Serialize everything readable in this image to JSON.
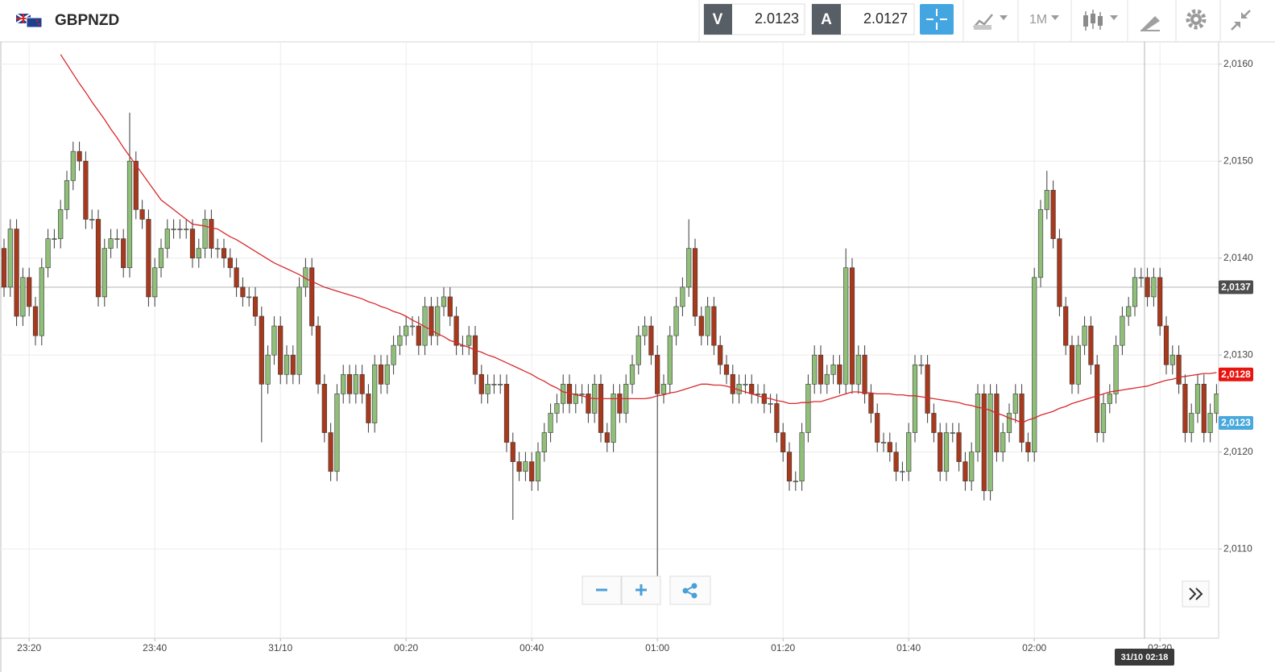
{
  "header": {
    "symbol": "GBPNZD",
    "bid": {
      "label": "V",
      "price": 2.0123
    },
    "ask": {
      "label": "A",
      "price": 2.0127
    },
    "timeframe": "1M"
  },
  "chart_data": {
    "type": "candlestick",
    "up_color": "#8fbf79",
    "down_color": "#a8391c",
    "ylim": [
      2.01008,
      2.01623
    ],
    "yticks": [
      {
        "value": 2.011,
        "label": "2,0110"
      },
      {
        "value": 2.012,
        "label": "2,0120"
      },
      {
        "value": 2.013,
        "label": "2,0130"
      },
      {
        "value": 2.014,
        "label": "2,0140"
      },
      {
        "value": 2.015,
        "label": "2,0150"
      },
      {
        "value": 2.016,
        "label": "2,0160"
      }
    ],
    "grid": true,
    "categories": [
      null,
      null,
      null,
      null,
      "23:20",
      null,
      null,
      null,
      null,
      null,
      null,
      null,
      null,
      null,
      null,
      null,
      null,
      null,
      null,
      null,
      null,
      null,
      null,
      null,
      "23:40",
      null,
      null,
      null,
      null,
      null,
      null,
      null,
      null,
      null,
      null,
      null,
      null,
      null,
      null,
      null,
      null,
      null,
      null,
      null,
      "31/10",
      null,
      null,
      null,
      null,
      null,
      null,
      null,
      null,
      null,
      null,
      null,
      null,
      null,
      null,
      null,
      null,
      null,
      null,
      null,
      "00:20",
      null,
      null,
      null,
      null,
      null,
      null,
      null,
      null,
      null,
      null,
      null,
      null,
      null,
      null,
      null,
      null,
      null,
      null,
      null,
      "00:40",
      null,
      null,
      null,
      null,
      null,
      null,
      null,
      null,
      null,
      null,
      null,
      null,
      null,
      null,
      null,
      null,
      null,
      null,
      null,
      "01:00",
      null,
      null,
      null,
      null,
      null,
      null,
      null,
      null,
      null,
      null,
      null,
      null,
      null,
      null,
      null,
      null,
      null,
      null,
      null,
      "01:20",
      null,
      null,
      null,
      null,
      null,
      null,
      null,
      null,
      null,
      null,
      null,
      null,
      null,
      null,
      null,
      null,
      null,
      null,
      null,
      "01:40",
      null,
      null,
      null,
      null,
      null,
      null,
      null,
      null,
      null,
      null,
      null,
      null,
      null,
      null,
      null,
      null,
      null,
      null,
      null,
      "02:00",
      null,
      null,
      null,
      null,
      null,
      null,
      null,
      null,
      null,
      null,
      null,
      null,
      null,
      null,
      null,
      null,
      null,
      null,
      null,
      "02:20",
      null,
      null,
      null,
      null,
      null,
      null,
      null,
      null,
      null
    ],
    "open": [
      2.0141,
      2.0137,
      2.0143,
      2.0134,
      2.0138,
      2.0135,
      2.0132,
      2.0139,
      2.0142,
      2.0142,
      2.0145,
      2.0148,
      2.0151,
      2.015,
      2.0144,
      2.0144,
      2.0136,
      2.0141,
      2.0142,
      2.0142,
      2.0139,
      2.015,
      2.0145,
      2.0144,
      2.0136,
      2.0139,
      2.0141,
      2.0143,
      2.0143,
      2.0143,
      2.0143,
      2.014,
      2.0141,
      2.0144,
      2.0141,
      2.0141,
      2.014,
      2.0139,
      2.0137,
      2.0136,
      2.0136,
      2.0134,
      2.0127,
      2.013,
      2.0133,
      2.0128,
      2.013,
      2.0128,
      2.0137,
      2.0139,
      2.0133,
      2.0127,
      2.0122,
      2.0118,
      2.0126,
      2.0128,
      2.0126,
      2.0128,
      2.0126,
      2.0123,
      2.0129,
      2.0127,
      2.0129,
      2.0131,
      2.0132,
      2.0133,
      2.0133,
      2.0131,
      2.0135,
      2.0132,
      2.0135,
      2.0136,
      2.0134,
      2.0131,
      2.0131,
      2.0132,
      2.0128,
      2.0126,
      2.0127,
      2.0127,
      2.0127,
      2.0121,
      2.0119,
      2.0118,
      2.0119,
      2.0117,
      2.012,
      2.0122,
      2.0124,
      2.0125,
      2.0127,
      2.0125,
      2.0126,
      2.0126,
      2.0124,
      2.0127,
      2.0122,
      2.0121,
      2.0126,
      2.0124,
      2.0127,
      2.0129,
      2.0132,
      2.0133,
      2.013,
      2.0126,
      2.0127,
      2.0132,
      2.0135,
      2.0137,
      2.0141,
      2.0134,
      2.0132,
      2.0135,
      2.0131,
      2.0129,
      2.0128,
      2.0126,
      2.0127,
      2.0127,
      2.0126,
      2.0126,
      2.0125,
      2.0125,
      2.0122,
      2.012,
      2.0117,
      2.0117,
      2.0122,
      2.0127,
      2.013,
      2.0127,
      2.0128,
      2.0129,
      2.0127,
      2.0139,
      2.0127,
      2.013,
      2.0126,
      2.0124,
      2.0121,
      2.0121,
      2.012,
      2.0118,
      2.0118,
      2.0122,
      2.0129,
      2.0129,
      2.0124,
      2.0122,
      2.0118,
      2.0122,
      2.0122,
      2.0119,
      2.0117,
      2.012,
      2.0126,
      2.0116,
      2.0126,
      2.012,
      2.0122,
      2.0124,
      2.0126,
      2.0121,
      2.012,
      2.0138,
      2.0145,
      2.0147,
      2.0142,
      2.0135,
      2.0131,
      2.0127,
      2.0131,
      2.0133,
      2.0129,
      2.0122,
      2.0125,
      2.0126,
      2.0131,
      2.0134,
      2.0135,
      2.0138,
      2.0138,
      2.0136,
      2.0138,
      2.0133,
      2.0129,
      2.013,
      2.0127,
      2.0122,
      2.0124,
      2.0127,
      2.0122,
      2.0124
    ],
    "high": [
      2.0142,
      2.0144,
      2.0144,
      2.0139,
      2.0139,
      2.0136,
      2.014,
      2.0143,
      2.0143,
      2.0146,
      2.0149,
      2.0152,
      2.0152,
      2.0151,
      2.0145,
      2.0145,
      2.0142,
      2.0143,
      2.0143,
      2.0143,
      2.0155,
      2.0151,
      2.0146,
      2.0145,
      2.014,
      2.0142,
      2.0144,
      2.0144,
      2.0144,
      2.0144,
      2.0144,
      2.0142,
      2.0145,
      2.0145,
      2.0142,
      2.0142,
      2.0141,
      2.014,
      2.0138,
      2.0137,
      2.0137,
      2.0135,
      2.0131,
      2.0134,
      2.0134,
      2.0131,
      2.0131,
      2.0138,
      2.014,
      2.014,
      2.0134,
      2.0128,
      2.0123,
      2.0127,
      2.0129,
      2.0129,
      2.0129,
      2.0129,
      2.0127,
      2.013,
      2.013,
      2.013,
      2.0132,
      2.0133,
      2.0134,
      2.0134,
      2.0134,
      2.0136,
      2.0136,
      2.0136,
      2.0137,
      2.0137,
      2.0135,
      2.0132,
      2.0133,
      2.0133,
      2.0129,
      2.0128,
      2.0128,
      2.0128,
      2.0128,
      2.0122,
      2.012,
      2.012,
      2.012,
      2.0121,
      2.0123,
      2.0125,
      2.0126,
      2.0128,
      2.0128,
      2.0127,
      2.0127,
      2.0127,
      2.0128,
      2.0128,
      2.0123,
      2.0127,
      2.0127,
      2.0128,
      2.013,
      2.0133,
      2.0134,
      2.0134,
      2.0131,
      2.0128,
      2.0133,
      2.0136,
      2.0138,
      2.0144,
      2.0142,
      2.0135,
      2.0136,
      2.0136,
      2.0132,
      2.013,
      2.0129,
      2.0128,
      2.0128,
      2.0128,
      2.0127,
      2.0127,
      2.0126,
      2.0126,
      2.0123,
      2.0121,
      2.0118,
      2.0123,
      2.0128,
      2.0131,
      2.0131,
      2.0129,
      2.013,
      2.013,
      2.0141,
      2.014,
      2.0131,
      2.0131,
      2.0127,
      2.0125,
      2.0122,
      2.0122,
      2.0121,
      2.0119,
      2.0123,
      2.013,
      2.013,
      2.013,
      2.0125,
      2.0123,
      2.0123,
      2.0123,
      2.0123,
      2.012,
      2.0121,
      2.0127,
      2.0127,
      2.0127,
      2.0127,
      2.0123,
      2.0125,
      2.0127,
      2.0127,
      2.0122,
      2.0139,
      2.0146,
      2.0149,
      2.0148,
      2.0143,
      2.0136,
      2.0132,
      2.0132,
      2.0134,
      2.0134,
      2.013,
      2.0126,
      2.0127,
      2.0132,
      2.0135,
      2.0136,
      2.0139,
      2.0139,
      2.0139,
      2.0139,
      2.0139,
      2.0134,
      2.0131,
      2.0131,
      2.0128,
      2.0125,
      2.0128,
      2.0128,
      2.0125,
      2.0127
    ],
    "low": [
      2.0136,
      2.0136,
      2.0133,
      2.0133,
      2.0134,
      2.0131,
      2.0131,
      2.0138,
      2.0141,
      2.0141,
      2.0144,
      2.0147,
      2.0149,
      2.0143,
      2.0143,
      2.0135,
      2.0135,
      2.014,
      2.0141,
      2.0138,
      2.0138,
      2.0144,
      2.0143,
      2.0135,
      2.0135,
      2.0138,
      2.014,
      2.0142,
      2.0142,
      2.0142,
      2.0139,
      2.0139,
      2.014,
      2.014,
      2.014,
      2.0139,
      2.0138,
      2.0136,
      2.0135,
      2.0135,
      2.0133,
      2.0121,
      2.0126,
      2.0129,
      2.0127,
      2.0127,
      2.0127,
      2.0127,
      2.0136,
      2.0132,
      2.0126,
      2.0121,
      2.0117,
      2.0117,
      2.0125,
      2.0125,
      2.0125,
      2.0125,
      2.0122,
      2.0122,
      2.0126,
      2.0126,
      2.0128,
      2.013,
      2.0131,
      2.0132,
      2.013,
      2.013,
      2.0131,
      2.0131,
      2.0134,
      2.0133,
      2.013,
      2.013,
      2.013,
      2.0127,
      2.0125,
      2.0125,
      2.0126,
      2.0126,
      2.012,
      2.0113,
      2.0117,
      2.0117,
      2.0116,
      2.0116,
      2.0119,
      2.0121,
      2.0123,
      2.0124,
      2.0124,
      2.0124,
      2.0125,
      2.0123,
      2.0123,
      2.0121,
      2.012,
      2.012,
      2.0123,
      2.0123,
      2.0126,
      2.0128,
      2.0131,
      2.0129,
      2.0107,
      2.0125,
      2.0126,
      2.0131,
      2.0134,
      2.0136,
      2.0133,
      2.0131,
      2.0131,
      2.013,
      2.0128,
      2.0127,
      2.0125,
      2.0125,
      2.0126,
      2.0125,
      2.0125,
      2.0124,
      2.0124,
      2.0121,
      2.0119,
      2.0116,
      2.0116,
      2.0116,
      2.0121,
      2.0126,
      2.0126,
      2.0126,
      2.0127,
      2.0126,
      2.0126,
      2.0126,
      2.0126,
      2.0125,
      2.0123,
      2.012,
      2.012,
      2.0119,
      2.0117,
      2.0117,
      2.0117,
      2.0121,
      2.0128,
      2.0123,
      2.0121,
      2.0117,
      2.0117,
      2.0121,
      2.0118,
      2.0116,
      2.0116,
      2.0119,
      2.0115,
      2.0115,
      2.0119,
      2.0119,
      2.0121,
      2.0123,
      2.012,
      2.0119,
      2.0119,
      2.0137,
      2.0144,
      2.0141,
      2.0134,
      2.013,
      2.0126,
      2.0126,
      2.013,
      2.0128,
      2.0121,
      2.0121,
      2.0124,
      2.0125,
      2.013,
      2.0133,
      2.0134,
      2.0137,
      2.0135,
      2.0135,
      2.0132,
      2.0128,
      2.0128,
      2.0126,
      2.0121,
      2.0121,
      2.0123,
      2.0121,
      2.0121,
      2.0123
    ],
    "close": [
      2.0137,
      2.0143,
      2.0134,
      2.0138,
      2.0135,
      2.0132,
      2.0139,
      2.0142,
      2.0142,
      2.0145,
      2.0148,
      2.0151,
      2.015,
      2.0144,
      2.0144,
      2.0136,
      2.0141,
      2.0142,
      2.0142,
      2.0139,
      2.015,
      2.0145,
      2.0144,
      2.0136,
      2.0139,
      2.0141,
      2.0143,
      2.0143,
      2.0143,
      2.0143,
      2.014,
      2.0141,
      2.0144,
      2.0141,
      2.0141,
      2.014,
      2.0139,
      2.0137,
      2.0136,
      2.0136,
      2.0134,
      2.0127,
      2.013,
      2.0133,
      2.0128,
      2.013,
      2.0128,
      2.0137,
      2.0139,
      2.0133,
      2.0127,
      2.0122,
      2.0118,
      2.0126,
      2.0128,
      2.0126,
      2.0128,
      2.0126,
      2.0123,
      2.0129,
      2.0127,
      2.0129,
      2.0131,
      2.0132,
      2.0133,
      2.0133,
      2.0131,
      2.0135,
      2.0132,
      2.0135,
      2.0136,
      2.0134,
      2.0131,
      2.0131,
      2.0132,
      2.0128,
      2.0126,
      2.0127,
      2.0127,
      2.0127,
      2.0121,
      2.0119,
      2.0118,
      2.0119,
      2.0117,
      2.012,
      2.0122,
      2.0124,
      2.0125,
      2.0127,
      2.0125,
      2.0126,
      2.0126,
      2.0124,
      2.0127,
      2.0122,
      2.0121,
      2.0126,
      2.0124,
      2.0127,
      2.0129,
      2.0132,
      2.0133,
      2.013,
      2.0126,
      2.0127,
      2.0132,
      2.0135,
      2.0137,
      2.0141,
      2.0134,
      2.0132,
      2.0135,
      2.0131,
      2.0129,
      2.0128,
      2.0126,
      2.0127,
      2.0127,
      2.0126,
      2.0126,
      2.0125,
      2.0125,
      2.0122,
      2.012,
      2.0117,
      2.0117,
      2.0122,
      2.0127,
      2.013,
      2.0127,
      2.0128,
      2.0129,
      2.0127,
      2.0139,
      2.0127,
      2.013,
      2.0126,
      2.0124,
      2.0121,
      2.0121,
      2.012,
      2.0118,
      2.0118,
      2.0122,
      2.0129,
      2.0129,
      2.0124,
      2.0122,
      2.0118,
      2.0122,
      2.0122,
      2.0119,
      2.0117,
      2.012,
      2.0126,
      2.0116,
      2.0126,
      2.012,
      2.0122,
      2.0124,
      2.0126,
      2.0121,
      2.012,
      2.0138,
      2.0145,
      2.0147,
      2.0142,
      2.0135,
      2.0131,
      2.0127,
      2.0131,
      2.0133,
      2.0129,
      2.0122,
      2.0125,
      2.0126,
      2.0131,
      2.0134,
      2.0135,
      2.0138,
      2.0138,
      2.0136,
      2.0138,
      2.0133,
      2.0129,
      2.013,
      2.0127,
      2.0122,
      2.0124,
      2.0127,
      2.0122,
      2.0124,
      2.0126
    ],
    "moving_average": {
      "color": "#d9282b",
      "values": [
        null,
        null,
        null,
        null,
        null,
        null,
        null,
        null,
        null,
        2.0161,
        2.016,
        2.0159,
        2.0158,
        2.01571,
        2.01561,
        2.01552,
        2.01543,
        2.01533,
        2.01524,
        2.01514,
        2.01505,
        2.01496,
        2.01487,
        2.01478,
        2.01469,
        2.0146,
        2.01455,
        2.0145,
        2.01445,
        2.0144,
        2.01435,
        2.01434,
        2.01433,
        2.01431,
        2.0143,
        2.01426,
        2.01422,
        2.01419,
        2.01415,
        2.01411,
        2.01407,
        2.01403,
        2.01399,
        2.01395,
        2.01392,
        2.01389,
        2.01386,
        2.01383,
        2.01379,
        2.01376,
        2.01373,
        2.0137,
        2.01368,
        2.01366,
        2.01364,
        2.01362,
        2.0136,
        2.01358,
        2.01355,
        2.01353,
        2.0135,
        2.01348,
        2.01345,
        2.01343,
        2.0134,
        2.01336,
        2.01333,
        2.01329,
        2.01326,
        2.01322,
        2.01319,
        2.01315,
        2.01313,
        2.0131,
        2.01308,
        2.01305,
        2.01303,
        2.013,
        2.01298,
        2.01295,
        2.01292,
        2.01289,
        2.01286,
        2.01283,
        2.0128,
        2.01276,
        2.01273,
        2.01269,
        2.01266,
        2.01262,
        2.01261,
        2.01259,
        2.01258,
        2.01256,
        2.01255,
        2.01255,
        2.01255,
        2.01255,
        2.01255,
        2.01255,
        2.01255,
        2.01255,
        2.01255,
        2.01256,
        2.01258,
        2.01259,
        2.01261,
        2.01262,
        2.01264,
        2.01266,
        2.01268,
        2.0127,
        2.0127,
        2.01269,
        2.01269,
        2.01268,
        2.01266,
        2.01264,
        2.01262,
        2.0126,
        2.01258,
        2.01256,
        2.01255,
        2.01253,
        2.01252,
        2.0125,
        2.0125,
        2.01251,
        2.01251,
        2.01252,
        2.01252,
        2.01254,
        2.01256,
        2.01258,
        2.0126,
        2.01262,
        2.01262,
        2.01261,
        2.01261,
        2.0126,
        2.0126,
        2.0126,
        2.01259,
        2.01259,
        2.01258,
        2.01258,
        2.01257,
        2.01256,
        2.01255,
        2.01254,
        2.01253,
        2.01252,
        2.01251,
        2.01249,
        2.01248,
        2.01246,
        2.01245,
        2.01243,
        2.0124,
        2.01238,
        2.01235,
        2.01233,
        2.0123,
        2.01233,
        2.01235,
        2.01238,
        2.0124,
        2.01242,
        2.01245,
        2.01247,
        2.0125,
        2.01252,
        2.01254,
        2.01256,
        2.01258,
        2.0126,
        2.01262,
        2.01263,
        2.01264,
        2.01265,
        2.01266,
        2.01267,
        2.01268,
        2.0127,
        2.01272,
        2.01274,
        2.01275,
        2.01277,
        2.01278,
        2.01279,
        2.0128,
        2.01281,
        2.01281,
        2.01282
      ]
    },
    "crosshair": {
      "price": 2.0137,
      "time_label": "31/10 02:18"
    },
    "price_labels": [
      {
        "value": 2.0137,
        "label": "2,0137",
        "color": "#4d4d4d"
      },
      {
        "value": 2.0128,
        "label": "2,0128",
        "color": "#e8140f"
      },
      {
        "value": 2.0123,
        "label": "2,0123",
        "color": "#4aa9dc"
      }
    ]
  }
}
